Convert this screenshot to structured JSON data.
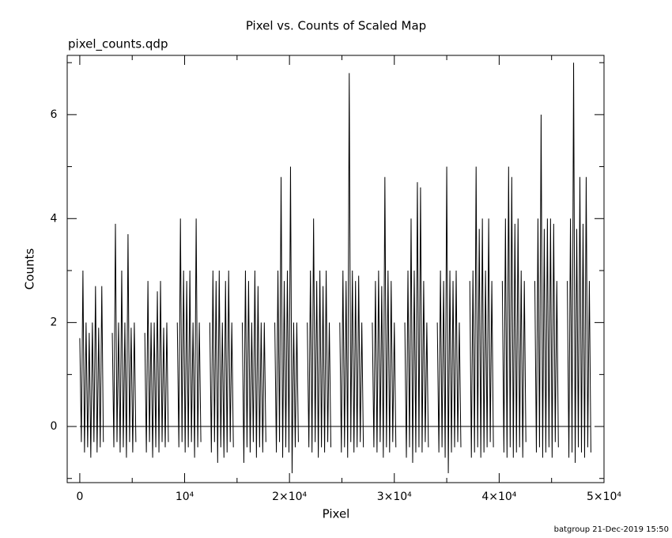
{
  "chart_data": {
    "type": "line",
    "title": "Pixel vs. Counts of Scaled Map",
    "subtitle": "pixel_counts.qdp",
    "xlabel": "Pixel",
    "ylabel": "Counts",
    "footer": "batgroup 21-Dec-2019 15:50",
    "xlim": [
      -1200,
      50000
    ],
    "ylim": [
      -1.08,
      7.14
    ],
    "xticks": [
      0,
      {
        "value": 10000,
        "label": "10⁴"
      },
      {
        "value": 20000,
        "label": "2×10⁴"
      },
      {
        "value": 30000,
        "label": "3×10⁴"
      },
      {
        "value": 40000,
        "label": "4×10⁴"
      },
      {
        "value": 50000,
        "label": "5×10⁴"
      }
    ],
    "xminorticks": [
      5000,
      15000,
      25000,
      35000,
      45000
    ],
    "yticks": [
      0,
      2,
      4,
      6
    ],
    "yminorticks": [
      -1,
      1,
      3,
      5,
      7
    ],
    "hline": 0,
    "x": [
      0,
      150,
      300,
      450,
      600,
      750,
      900,
      1050,
      1200,
      1350,
      1500,
      1650,
      1800,
      1950,
      2100,
      2250,
      2700,
      3100,
      3250,
      3400,
      3550,
      3700,
      3850,
      4000,
      4150,
      4300,
      4450,
      4600,
      4750,
      4900,
      5050,
      5200,
      5350,
      5800,
      6200,
      6350,
      6500,
      6650,
      6800,
      6950,
      7100,
      7250,
      7400,
      7550,
      7700,
      7850,
      8000,
      8150,
      8300,
      8450,
      8900,
      9300,
      9450,
      9600,
      9750,
      9900,
      10050,
      10200,
      10350,
      10500,
      10650,
      10800,
      10950,
      11100,
      11250,
      11400,
      11550,
      12000,
      12400,
      12550,
      12700,
      12850,
      13000,
      13150,
      13300,
      13450,
      13600,
      13750,
      13900,
      14050,
      14200,
      14350,
      14500,
      14650,
      15100,
      15500,
      15650,
      15800,
      15950,
      16100,
      16250,
      16400,
      16550,
      16700,
      16850,
      17000,
      17150,
      17300,
      17450,
      17600,
      17750,
      18200,
      18600,
      18750,
      18900,
      19050,
      19200,
      19350,
      19500,
      19650,
      19800,
      19950,
      20100,
      20250,
      20400,
      20550,
      20700,
      20850,
      21300,
      21700,
      21850,
      22000,
      22150,
      22300,
      22450,
      22600,
      22750,
      22900,
      23050,
      23200,
      23350,
      23500,
      23650,
      23800,
      23950,
      24400,
      24800,
      24950,
      25100,
      25250,
      25400,
      25550,
      25700,
      25850,
      26000,
      26150,
      26300,
      26450,
      26600,
      26750,
      26900,
      27050,
      27500,
      27900,
      28050,
      28200,
      28350,
      28500,
      28650,
      28800,
      28950,
      29100,
      29250,
      29400,
      29550,
      29700,
      29850,
      30000,
      30150,
      30600,
      31000,
      31150,
      31300,
      31450,
      31600,
      31750,
      31900,
      32050,
      32200,
      32350,
      32500,
      32650,
      32800,
      32950,
      33100,
      33250,
      33700,
      34100,
      34250,
      34400,
      34550,
      34700,
      34850,
      35000,
      35150,
      35300,
      35450,
      35600,
      35750,
      35900,
      36050,
      36200,
      36350,
      36800,
      37200,
      37350,
      37500,
      37650,
      37800,
      37950,
      38100,
      38250,
      38400,
      38550,
      38700,
      38850,
      39000,
      39150,
      39300,
      39450,
      39900,
      40300,
      40450,
      40600,
      40750,
      40900,
      41050,
      41200,
      41350,
      41500,
      41650,
      41800,
      41950,
      42100,
      42250,
      42400,
      42550,
      43000,
      43400,
      43550,
      43700,
      43850,
      44000,
      44150,
      44300,
      44450,
      44600,
      44750,
      44900,
      45050,
      45200,
      45350,
      45500,
      45650,
      46100,
      46500,
      46650,
      46800,
      46950,
      47100,
      47250,
      47400,
      47550,
      47700,
      47850,
      48000,
      48150,
      48300,
      48450,
      48600,
      48750
    ],
    "series": [
      {
        "color": "#000000",
        "values": [
          1.7,
          -0.3,
          3,
          -0.5,
          2,
          -0.4,
          1.8,
          -0.6,
          2,
          -0.3,
          2.7,
          -0.5,
          1.9,
          -0.4,
          2.7,
          -0.3,
          null,
          1.8,
          -0.4,
          3.9,
          -0.3,
          2,
          -0.5,
          3,
          -0.4,
          2,
          -0.6,
          3.7,
          -0.3,
          1.9,
          -0.5,
          2,
          -0.3,
          null,
          1.8,
          -0.5,
          2.8,
          -0.3,
          2,
          -0.6,
          2,
          -0.4,
          2.6,
          -0.5,
          2.8,
          -0.3,
          1.9,
          -0.4,
          2,
          -0.3,
          null,
          2,
          -0.4,
          4,
          -0.3,
          3,
          -0.5,
          2.8,
          -0.4,
          3,
          -0.3,
          2,
          -0.6,
          4,
          -0.4,
          2,
          -0.3,
          null,
          2,
          -0.5,
          3,
          -0.3,
          2.8,
          -0.7,
          3,
          -0.4,
          2,
          -0.6,
          2.8,
          -0.5,
          3,
          -0.3,
          2,
          -0.4,
          null,
          2,
          -0.7,
          3,
          -0.4,
          2.8,
          -0.5,
          2,
          -0.3,
          3,
          -0.6,
          2.7,
          -0.4,
          2,
          -0.5,
          2,
          -0.3,
          null,
          2,
          -0.5,
          3,
          -0.3,
          4.8,
          -0.6,
          2.8,
          -0.4,
          3,
          -0.5,
          5,
          -0.9,
          2,
          -0.4,
          2,
          -0.3,
          null,
          2,
          -0.4,
          3,
          -0.5,
          4,
          -0.3,
          2.8,
          -0.6,
          3,
          -0.4,
          2.7,
          -0.5,
          3,
          -0.3,
          2,
          -0.4,
          null,
          2,
          -0.5,
          3,
          -0.4,
          2.8,
          -0.6,
          6.8,
          -0.3,
          3,
          -0.5,
          2.8,
          -0.4,
          2.9,
          -0.3,
          2,
          -0.4,
          null,
          2,
          -0.4,
          2.8,
          -0.5,
          3,
          -0.3,
          2.7,
          -0.6,
          4.8,
          -0.4,
          3,
          -0.5,
          2.8,
          -0.3,
          2,
          -0.4,
          null,
          2,
          -0.6,
          3,
          -0.4,
          4,
          -0.7,
          3,
          -0.5,
          4.7,
          -0.4,
          4.6,
          -0.5,
          2.8,
          -0.3,
          2,
          -0.4,
          null,
          2,
          -0.5,
          3,
          -0.4,
          2.8,
          -0.6,
          5,
          -0.9,
          3,
          -0.5,
          2.8,
          -0.4,
          3,
          -0.3,
          2,
          -0.4,
          null,
          2.8,
          -0.6,
          3,
          -0.5,
          5,
          -0.4,
          3.8,
          -0.6,
          4,
          -0.5,
          3,
          -0.4,
          4,
          -0.3,
          2.8,
          -0.4,
          null,
          2.8,
          -0.5,
          4,
          -0.6,
          5,
          -0.4,
          4.8,
          -0.6,
          3.9,
          -0.5,
          4,
          -0.4,
          3,
          -0.6,
          2.8,
          -0.3,
          null,
          2.8,
          -0.5,
          4,
          -0.4,
          6,
          -0.6,
          3.8,
          -0.5,
          4,
          -0.4,
          4,
          -0.6,
          3.9,
          -0.3,
          2.8,
          -0.4,
          null,
          2.8,
          -0.6,
          4,
          -0.5,
          7,
          -0.7,
          3.8,
          -0.4,
          4.8,
          -0.5,
          3.9,
          -0.6,
          4.8,
          -0.4,
          2.8,
          -0.5
        ]
      }
    ]
  }
}
